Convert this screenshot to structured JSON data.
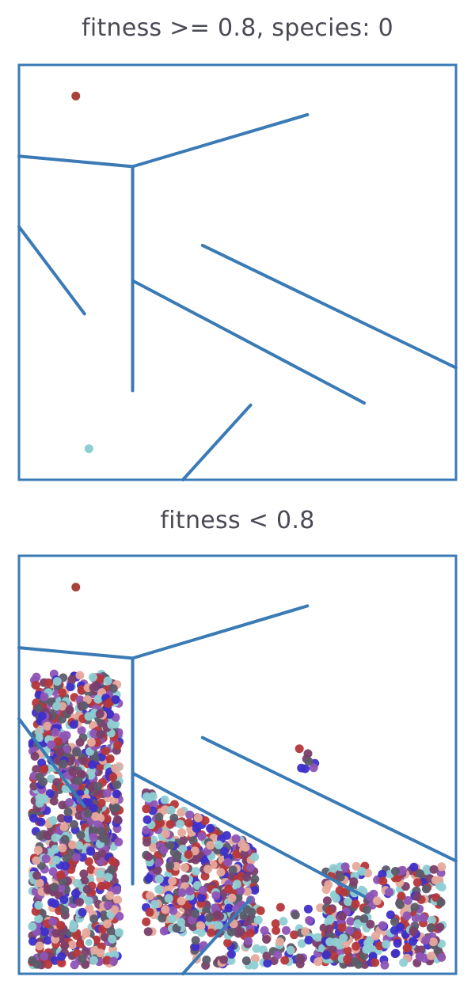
{
  "colors": {
    "frame": "#3a7ab5",
    "wall": "#3a7ab5",
    "start": "#a8413a",
    "goal": "#8ecfd3",
    "title_text": "#4a4a55",
    "palette": [
      "#b5373a",
      "#5c5c6a",
      "#3d2fc9",
      "#8ecfd3",
      "#e6a99b",
      "#8e54b5",
      "#7a3f6a"
    ]
  },
  "chart_data": [
    {
      "type": "scatter",
      "title": "fitness >= 0.8, species: 0",
      "xlim": [
        0,
        100
      ],
      "ylim": [
        0,
        100
      ],
      "grid": false,
      "walls": [
        [
          [
            0,
            78
          ],
          [
            26,
            75.5
          ]
        ],
        [
          [
            26,
            75.5
          ],
          [
            66,
            88
          ]
        ],
        [
          [
            26,
            75.5
          ],
          [
            26,
            21.5
          ]
        ],
        [
          [
            0,
            61
          ],
          [
            15,
            40
          ]
        ],
        [
          [
            26,
            48
          ],
          [
            79,
            18.5
          ]
        ],
        [
          [
            42,
            56.5
          ],
          [
            100,
            27
          ]
        ],
        [
          [
            37.5,
            0
          ],
          [
            53,
            18
          ]
        ]
      ],
      "start": [
        13,
        92.5
      ],
      "goal": [
        16,
        7.5
      ],
      "points": []
    },
    {
      "type": "scatter",
      "title": "fitness < 0.8",
      "xlim": [
        0,
        100
      ],
      "ylim": [
        0,
        100
      ],
      "grid": false,
      "walls": [
        [
          [
            0,
            78
          ],
          [
            26,
            75.5
          ]
        ],
        [
          [
            26,
            75.5
          ],
          [
            66,
            88
          ]
        ],
        [
          [
            26,
            75.5
          ],
          [
            26,
            21.5
          ]
        ],
        [
          [
            0,
            61
          ],
          [
            15,
            40
          ]
        ],
        [
          [
            26,
            48
          ],
          [
            79,
            18.5
          ]
        ],
        [
          [
            42,
            56.5
          ],
          [
            100,
            27
          ]
        ],
        [
          [
            37.5,
            0
          ],
          [
            53,
            18
          ]
        ]
      ],
      "start": [
        13,
        92.5
      ],
      "goal": [
        16,
        7.5
      ],
      "point_clusters": [
        {
          "region": "left-column",
          "count": 900
        },
        {
          "region": "left-diagonal",
          "count": 260
        },
        {
          "region": "central-wedge",
          "count": 520
        },
        {
          "region": "bottom-corridor",
          "count": 160
        },
        {
          "region": "right-pocket",
          "count": 330
        },
        {
          "region": "mid-stray",
          "count": 8
        }
      ]
    }
  ]
}
